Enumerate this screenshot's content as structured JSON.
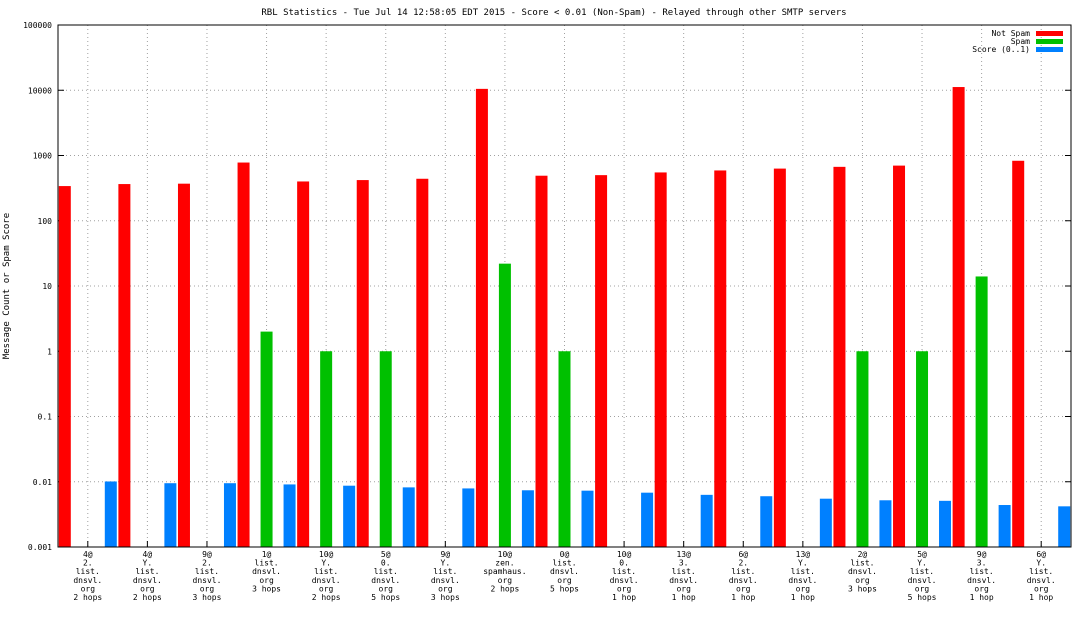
{
  "chart_data": {
    "type": "bar",
    "title": "RBL Statistics - Tue Jul 14 12:58:05 EDT 2015 - Score < 0.01 (Non-Spam) - Relayed through other SMTP servers",
    "ylabel": "Message Count or Spam Score",
    "xlabel": "",
    "yscale": "log",
    "ylim": [
      0.001,
      100000
    ],
    "yticks": [
      "0.001",
      "0.01",
      "0.1",
      "1",
      "10",
      "100",
      "1000",
      "10000",
      "100000"
    ],
    "grid": true,
    "legend_position": "top-right",
    "categories": [
      [
        "4@",
        "2.",
        "list.",
        "dnsvl.",
        "org",
        "2 hops"
      ],
      [
        "4@",
        "Y.",
        "list.",
        "dnsvl.",
        "org",
        "2 hops"
      ],
      [
        "9@",
        "2.",
        "list.",
        "dnsvl.",
        "org",
        "3 hops"
      ],
      [
        "1@",
        "list.",
        "dnsvl.",
        "org",
        "3 hops"
      ],
      [
        "10@",
        "Y.",
        "list.",
        "dnsvl.",
        "org",
        "2 hops"
      ],
      [
        "5@",
        "0.",
        "list.",
        "dnsvl.",
        "org",
        "5 hops"
      ],
      [
        "9@",
        "Y.",
        "list.",
        "dnsvl.",
        "org",
        "3 hops"
      ],
      [
        "10@",
        "zen.",
        "spamhaus.",
        "org",
        "2 hops"
      ],
      [
        "0@",
        "list.",
        "dnsvl.",
        "org",
        "5 hops"
      ],
      [
        "10@",
        "0.",
        "list.",
        "dnsvl.",
        "org",
        "1 hop"
      ],
      [
        "13@",
        "3.",
        "list.",
        "dnsvl.",
        "org",
        "1 hop"
      ],
      [
        "6@",
        "2.",
        "list.",
        "dnsvl.",
        "org",
        "1 hop"
      ],
      [
        "13@",
        "Y.",
        "list.",
        "dnsvl.",
        "org",
        "1 hop"
      ],
      [
        "2@",
        "list.",
        "dnsvl.",
        "org",
        "3 hops"
      ],
      [
        "5@",
        "Y.",
        "list.",
        "dnsvl.",
        "org",
        "5 hops"
      ],
      [
        "9@",
        "3.",
        "list.",
        "dnsvl.",
        "org",
        "1 hop"
      ],
      [
        "6@",
        "Y.",
        "list.",
        "dnsvl.",
        "org",
        "1 hop"
      ]
    ],
    "series": [
      {
        "name": "Not Spam",
        "color": "#ff0000",
        "values": [
          340,
          365,
          370,
          780,
          400,
          420,
          440,
          10500,
          490,
          500,
          550,
          590,
          630,
          670,
          700,
          11200,
          830
        ]
      },
      {
        "name": "Spam",
        "color": "#00c000",
        "values": [
          0,
          0,
          0,
          2,
          1,
          1,
          0,
          22,
          1,
          0,
          0,
          0,
          0,
          1,
          1,
          14,
          0
        ]
      },
      {
        "name": "Score (0..1)",
        "color": "#0080ff",
        "values": [
          0.0101,
          0.0095,
          0.0095,
          0.0091,
          0.0087,
          0.0082,
          0.0079,
          0.0074,
          0.0073,
          0.0068,
          0.0063,
          0.006,
          0.0055,
          0.0052,
          0.0051,
          0.0044,
          0.0042
        ]
      }
    ]
  }
}
